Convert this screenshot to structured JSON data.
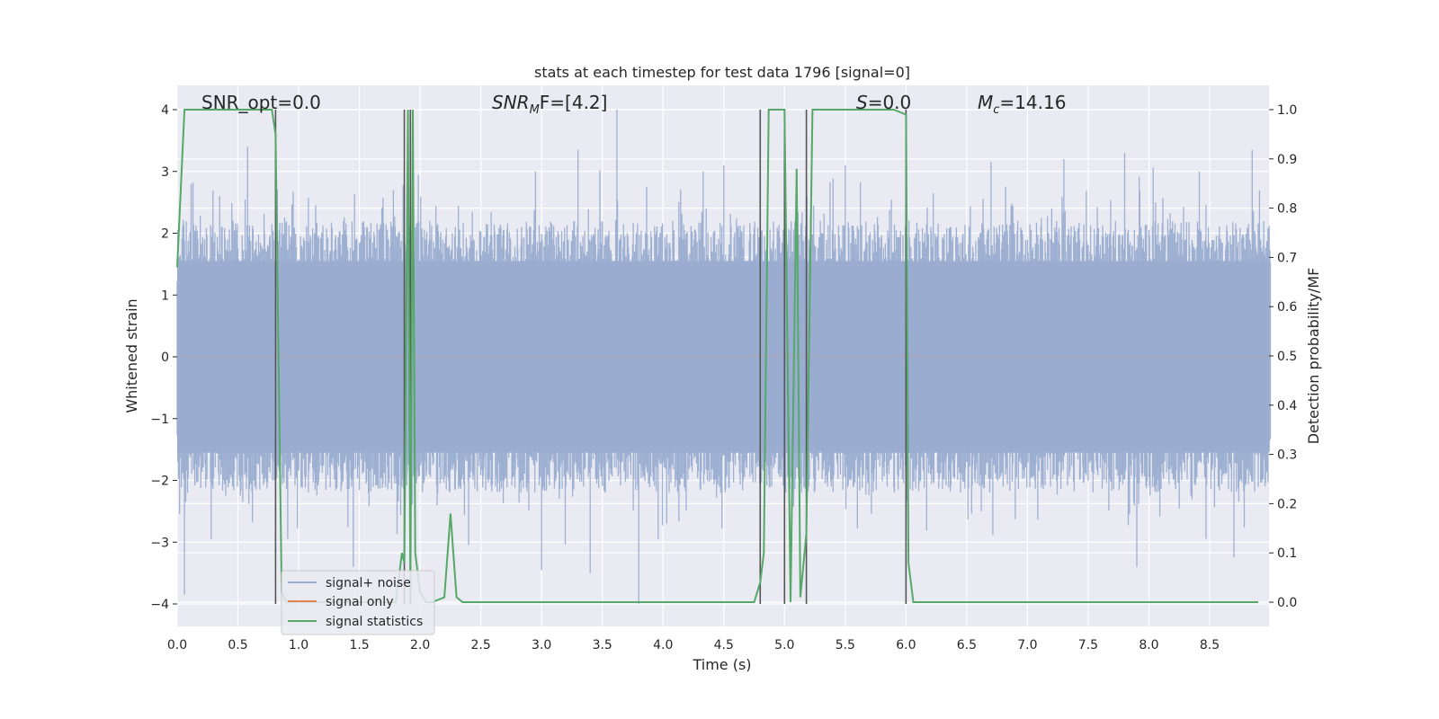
{
  "chart_data": {
    "type": "line",
    "title": "stats at each timestep for test data 1796 [signal=0]",
    "xlabel": "Time (s)",
    "ylabel_left": "Whitened strain",
    "ylabel_right": "Detection probability/MF",
    "xlim": [
      0,
      9.0
    ],
    "ylim_left": [
      -4.4,
      4.4
    ],
    "ylim_right": [
      -0.05,
      1.05
    ],
    "x_ticks": [
      "0.0",
      "0.5",
      "1.0",
      "1.5",
      "2.0",
      "2.5",
      "3.0",
      "3.5",
      "4.0",
      "4.5",
      "5.0",
      "5.5",
      "6.0",
      "6.5",
      "7.0",
      "7.5",
      "8.0",
      "8.5"
    ],
    "x_tick_values": [
      0,
      0.5,
      1,
      1.5,
      2,
      2.5,
      3,
      3.5,
      4,
      4.5,
      5,
      5.5,
      6,
      6.5,
      7,
      7.5,
      8,
      8.5
    ],
    "y_left_ticks": [
      "4",
      "3",
      "2",
      "1",
      "0",
      "−1",
      "−2",
      "−3",
      "−4"
    ],
    "y_left_tick_values": [
      4,
      3,
      2,
      1,
      0,
      -1,
      -2,
      -3,
      -4
    ],
    "y_right_ticks": [
      "1.0",
      "0.9",
      "0.8",
      "0.7",
      "0.6",
      "0.5",
      "0.4",
      "0.3",
      "0.2",
      "0.1",
      "0.0"
    ],
    "y_right_tick_values": [
      1.0,
      0.9,
      0.8,
      0.7,
      0.6,
      0.5,
      0.4,
      0.3,
      0.2,
      0.1,
      0.0
    ],
    "grid": true,
    "legend_position": "lower-left",
    "annotations": {
      "snr_opt": "SNR_opt=0.0",
      "snr_mf_main": "SNR",
      "snr_mf_sub": "M",
      "snr_mf_rest": "F=[4.2]",
      "s_main": "S",
      "s_rest": "=0.0",
      "mc_main": "M",
      "mc_sub": "c",
      "mc_rest": "=14.16"
    },
    "vertical_lines_x": [
      0.81,
      1.87,
      1.92,
      4.8,
      5.0,
      5.18,
      6.0
    ],
    "series": [
      {
        "name": "signal+ noise",
        "color": "#9aadd0",
        "axis": "left",
        "envelope": {
          "t_step": 0.005,
          "typical_max": 2.2,
          "typical_min": -2.2,
          "peaks": [
            {
              "x": 0.06,
              "y": -3.85
            },
            {
              "x": 0.28,
              "y": -2.95
            },
            {
              "x": 0.58,
              "y": 3.4
            },
            {
              "x": 1.45,
              "y": -3.4
            },
            {
              "x": 1.94,
              "y": 3.9
            },
            {
              "x": 2.95,
              "y": 3.0
            },
            {
              "x": 3.0,
              "y": -3.45
            },
            {
              "x": 3.3,
              "y": 3.35
            },
            {
              "x": 3.4,
              "y": -3.5
            },
            {
              "x": 3.62,
              "y": 4.0
            },
            {
              "x": 3.8,
              "y": -4.0
            },
            {
              "x": 4.5,
              "y": 3.1
            },
            {
              "x": 5.5,
              "y": 3.1
            },
            {
              "x": 6.7,
              "y": 3.15
            },
            {
              "x": 7.3,
              "y": 3.2
            },
            {
              "x": 7.8,
              "y": 3.3
            },
            {
              "x": 7.9,
              "y": -3.4
            },
            {
              "x": 8.7,
              "y": -3.25
            },
            {
              "x": 8.85,
              "y": 3.35
            }
          ]
        }
      },
      {
        "name": "signal only",
        "color": "#dd8452",
        "axis": "left",
        "x": [
          0,
          9.0
        ],
        "y": [
          0,
          0
        ]
      },
      {
        "name": "signal statistics",
        "color": "#55a868",
        "axis": "right",
        "x": [
          0.0,
          0.06,
          0.1,
          0.2,
          0.5,
          0.7,
          0.78,
          0.81,
          0.86,
          0.9,
          1.8,
          1.85,
          1.87,
          1.9,
          1.92,
          1.94,
          1.96,
          2.0,
          2.05,
          2.1,
          2.2,
          2.25,
          2.3,
          2.35,
          3.0,
          4.0,
          4.5,
          4.75,
          4.8,
          4.83,
          4.87,
          5.0,
          5.05,
          5.1,
          5.13,
          5.18,
          5.23,
          5.3,
          5.6,
          5.9,
          6.0,
          6.02,
          6.06,
          6.12,
          6.5,
          7.0,
          8.0,
          8.9
        ],
        "y": [
          0.68,
          1.0,
          1.0,
          1.0,
          1.0,
          1.0,
          1.0,
          0.95,
          0.02,
          0.0,
          0.0,
          0.1,
          0.08,
          1.0,
          0.02,
          1.0,
          0.1,
          0.02,
          0.0,
          0.0,
          0.01,
          0.18,
          0.01,
          0.0,
          0.0,
          0.0,
          0.0,
          0.0,
          0.04,
          0.1,
          1.0,
          1.0,
          0.0,
          0.88,
          0.01,
          0.14,
          1.0,
          1.0,
          1.0,
          1.0,
          0.99,
          0.08,
          0.0,
          0.0,
          0.0,
          0.0,
          0.0,
          0.0
        ]
      }
    ]
  }
}
